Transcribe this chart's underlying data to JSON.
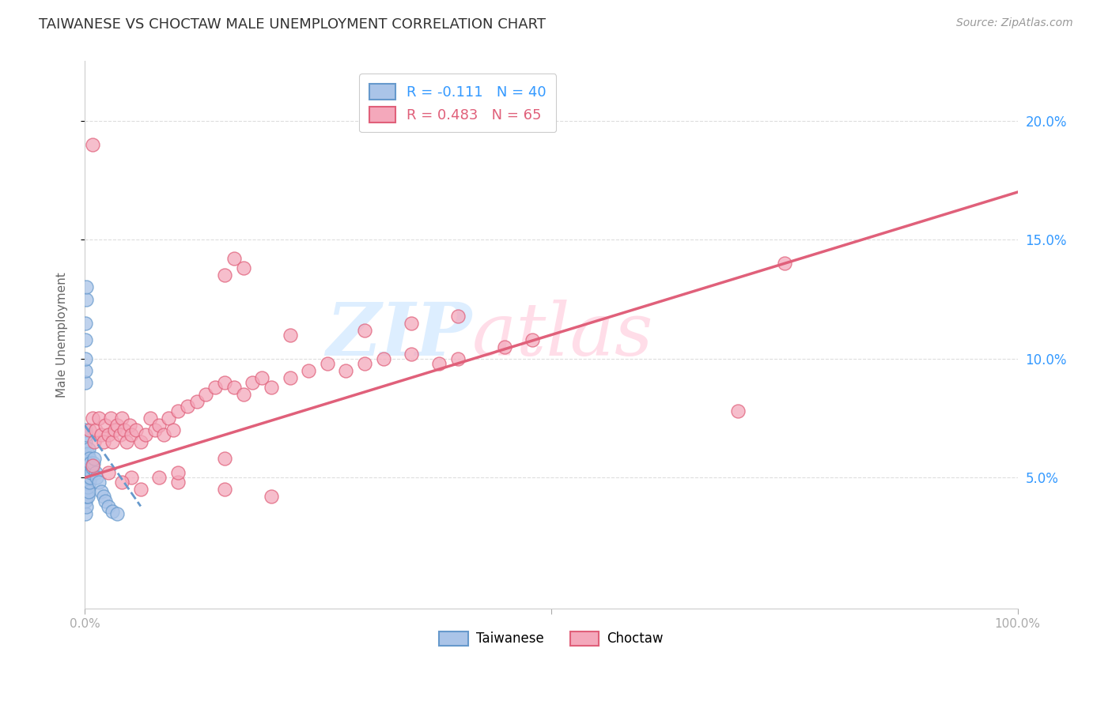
{
  "title": "TAIWANESE VS CHOCTAW MALE UNEMPLOYMENT CORRELATION CHART",
  "source": "Source: ZipAtlas.com",
  "ylabel": "Male Unemployment",
  "right_yticks": [
    "5.0%",
    "10.0%",
    "15.0%",
    "20.0%"
  ],
  "right_ytick_vals": [
    0.05,
    0.1,
    0.15,
    0.2
  ],
  "legend_r_taiwanese": "R = -0.111",
  "legend_n_taiwanese": "N = 40",
  "legend_r_choctaw": "R = 0.483",
  "legend_n_choctaw": "N = 65",
  "taiwanese_color": "#aac4e8",
  "choctaw_color": "#f4a8bb",
  "taiwanese_edge": "#6699cc",
  "choctaw_edge": "#e0607a",
  "taiwanese_line_color": "#6699cc",
  "choctaw_line_color": "#e0607a",
  "background_color": "#ffffff",
  "watermark_zip_color": "#ddeeff",
  "watermark_atlas_color": "#ffdde8",
  "taiwanese_x": [
    0.001,
    0.001,
    0.001,
    0.001,
    0.001,
    0.001,
    0.001,
    0.001,
    0.002,
    0.002,
    0.002,
    0.002,
    0.002,
    0.002,
    0.003,
    0.003,
    0.003,
    0.003,
    0.004,
    0.004,
    0.004,
    0.004,
    0.005,
    0.005,
    0.005,
    0.006,
    0.006,
    0.007,
    0.008,
    0.009,
    0.01,
    0.012,
    0.013,
    0.015,
    0.018,
    0.02,
    0.022,
    0.025,
    0.03,
    0.035
  ],
  "taiwanese_y": [
    0.035,
    0.04,
    0.045,
    0.05,
    0.055,
    0.06,
    0.065,
    0.07,
    0.038,
    0.042,
    0.048,
    0.052,
    0.058,
    0.068,
    0.042,
    0.046,
    0.052,
    0.06,
    0.044,
    0.05,
    0.056,
    0.062,
    0.048,
    0.054,
    0.058,
    0.05,
    0.056,
    0.052,
    0.054,
    0.056,
    0.058,
    0.052,
    0.05,
    0.048,
    0.044,
    0.042,
    0.04,
    0.038,
    0.036,
    0.035
  ],
  "taiwanese_extra_y": [
    0.09,
    0.095,
    0.1,
    0.108,
    0.115,
    0.125,
    0.13
  ],
  "taiwanese_extra_x": [
    0.001,
    0.001,
    0.001,
    0.001,
    0.001,
    0.002,
    0.002
  ],
  "choctaw_x": [
    0.005,
    0.008,
    0.01,
    0.012,
    0.015,
    0.018,
    0.02,
    0.022,
    0.025,
    0.028,
    0.03,
    0.032,
    0.035,
    0.038,
    0.04,
    0.042,
    0.045,
    0.048,
    0.05,
    0.055,
    0.06,
    0.065,
    0.07,
    0.075,
    0.08,
    0.085,
    0.09,
    0.095,
    0.1,
    0.11,
    0.12,
    0.13,
    0.14,
    0.15,
    0.16,
    0.17,
    0.18,
    0.19,
    0.2,
    0.22,
    0.24,
    0.26,
    0.28,
    0.3,
    0.32,
    0.35,
    0.38,
    0.4,
    0.45,
    0.48,
    0.22,
    0.3,
    0.35,
    0.4,
    0.05,
    0.1,
    0.15,
    0.2,
    0.008,
    0.025,
    0.04,
    0.06,
    0.08,
    0.1,
    0.15
  ],
  "choctaw_y": [
    0.07,
    0.075,
    0.065,
    0.07,
    0.075,
    0.068,
    0.065,
    0.072,
    0.068,
    0.075,
    0.065,
    0.07,
    0.072,
    0.068,
    0.075,
    0.07,
    0.065,
    0.072,
    0.068,
    0.07,
    0.065,
    0.068,
    0.075,
    0.07,
    0.072,
    0.068,
    0.075,
    0.07,
    0.078,
    0.08,
    0.082,
    0.085,
    0.088,
    0.09,
    0.088,
    0.085,
    0.09,
    0.092,
    0.088,
    0.092,
    0.095,
    0.098,
    0.095,
    0.098,
    0.1,
    0.102,
    0.098,
    0.1,
    0.105,
    0.108,
    0.11,
    0.112,
    0.115,
    0.118,
    0.05,
    0.048,
    0.045,
    0.042,
    0.055,
    0.052,
    0.048,
    0.045,
    0.05,
    0.052,
    0.058
  ],
  "choctaw_outliers_x": [
    0.008,
    0.15,
    0.16,
    0.17,
    0.7,
    0.75
  ],
  "choctaw_outliers_y": [
    0.19,
    0.135,
    0.142,
    0.138,
    0.078,
    0.14
  ],
  "tw_line_x0": 0.0,
  "tw_line_x1": 0.06,
  "tw_line_y0": 0.072,
  "tw_line_y1": 0.038,
  "ch_line_x0": 0.0,
  "ch_line_x1": 1.0,
  "ch_line_y0": 0.05,
  "ch_line_y1": 0.17,
  "xlim": [
    0.0,
    1.0
  ],
  "ylim": [
    -0.005,
    0.225
  ],
  "title_fontsize": 13,
  "source_fontsize": 10
}
